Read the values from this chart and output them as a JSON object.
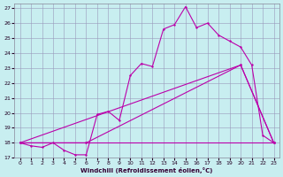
{
  "xlabel": "Windchill (Refroidissement éolien,°C)",
  "bg_color": "#c8eef0",
  "grid_color": "#9999bb",
  "line_color": "#bb00aa",
  "xlim": [
    -0.5,
    23.5
  ],
  "ylim": [
    17,
    27.3
  ],
  "xticks": [
    0,
    1,
    2,
    3,
    4,
    5,
    6,
    7,
    8,
    9,
    10,
    11,
    12,
    13,
    14,
    15,
    16,
    17,
    18,
    19,
    20,
    21,
    22,
    23
  ],
  "yticks": [
    17,
    18,
    19,
    20,
    21,
    22,
    23,
    24,
    25,
    26,
    27
  ],
  "series1_x": [
    0,
    1,
    2,
    3,
    4,
    5,
    6,
    7,
    8,
    9,
    10,
    11,
    12,
    13,
    14,
    15,
    16,
    17,
    18,
    19,
    20,
    21,
    22,
    23
  ],
  "series1_y": [
    18.0,
    17.8,
    17.7,
    18.0,
    17.5,
    17.2,
    17.2,
    19.9,
    20.1,
    19.5,
    22.5,
    23.3,
    23.1,
    25.6,
    25.9,
    27.1,
    25.7,
    26.0,
    25.2,
    24.8,
    24.4,
    23.2,
    18.5,
    18.0
  ],
  "line2_x": [
    0,
    20,
    23
  ],
  "line2_y": [
    18.0,
    23.2,
    18.0
  ],
  "line3_x": [
    0,
    6,
    20,
    23
  ],
  "line3_y": [
    18.0,
    18.0,
    23.2,
    18.0
  ],
  "line4_x": [
    0,
    6,
    23
  ],
  "line4_y": [
    18.0,
    18.0,
    18.0
  ]
}
